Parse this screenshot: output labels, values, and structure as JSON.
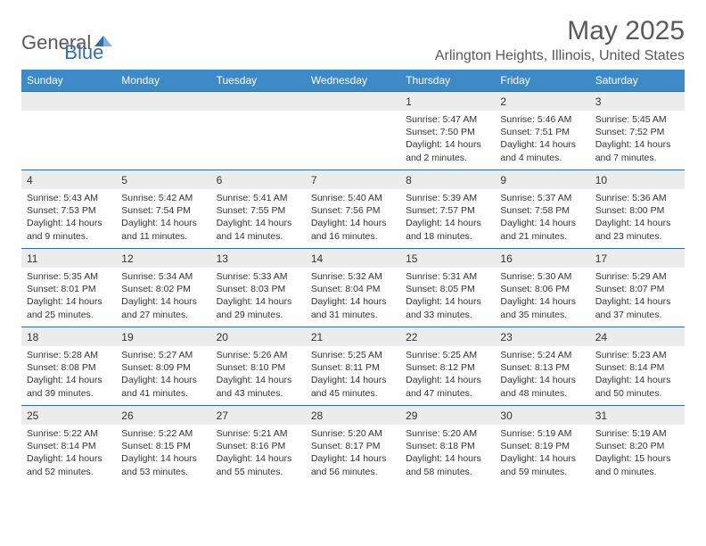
{
  "logo": {
    "text_a": "General",
    "text_b": "Blue"
  },
  "title": "May 2025",
  "location": "Arlington Heights, Illinois, United States",
  "colors": {
    "header_bg": "#3e8ac9",
    "header_text": "#ffffff",
    "border": "#2f6fb0",
    "daynum_bg": "#ececec",
    "body_text": "#333333",
    "title_text": "#5a5a5a",
    "logo_blue": "#2f6fb0"
  },
  "weekdays": [
    "Sunday",
    "Monday",
    "Tuesday",
    "Wednesday",
    "Thursday",
    "Friday",
    "Saturday"
  ],
  "weeks": [
    [
      {
        "n": "",
        "sunrise": "",
        "sunset": "",
        "daylight": ""
      },
      {
        "n": "",
        "sunrise": "",
        "sunset": "",
        "daylight": ""
      },
      {
        "n": "",
        "sunrise": "",
        "sunset": "",
        "daylight": ""
      },
      {
        "n": "",
        "sunrise": "",
        "sunset": "",
        "daylight": ""
      },
      {
        "n": "1",
        "sunrise": "Sunrise: 5:47 AM",
        "sunset": "Sunset: 7:50 PM",
        "daylight": "Daylight: 14 hours and 2 minutes."
      },
      {
        "n": "2",
        "sunrise": "Sunrise: 5:46 AM",
        "sunset": "Sunset: 7:51 PM",
        "daylight": "Daylight: 14 hours and 4 minutes."
      },
      {
        "n": "3",
        "sunrise": "Sunrise: 5:45 AM",
        "sunset": "Sunset: 7:52 PM",
        "daylight": "Daylight: 14 hours and 7 minutes."
      }
    ],
    [
      {
        "n": "4",
        "sunrise": "Sunrise: 5:43 AM",
        "sunset": "Sunset: 7:53 PM",
        "daylight": "Daylight: 14 hours and 9 minutes."
      },
      {
        "n": "5",
        "sunrise": "Sunrise: 5:42 AM",
        "sunset": "Sunset: 7:54 PM",
        "daylight": "Daylight: 14 hours and 11 minutes."
      },
      {
        "n": "6",
        "sunrise": "Sunrise: 5:41 AM",
        "sunset": "Sunset: 7:55 PM",
        "daylight": "Daylight: 14 hours and 14 minutes."
      },
      {
        "n": "7",
        "sunrise": "Sunrise: 5:40 AM",
        "sunset": "Sunset: 7:56 PM",
        "daylight": "Daylight: 14 hours and 16 minutes."
      },
      {
        "n": "8",
        "sunrise": "Sunrise: 5:39 AM",
        "sunset": "Sunset: 7:57 PM",
        "daylight": "Daylight: 14 hours and 18 minutes."
      },
      {
        "n": "9",
        "sunrise": "Sunrise: 5:37 AM",
        "sunset": "Sunset: 7:58 PM",
        "daylight": "Daylight: 14 hours and 21 minutes."
      },
      {
        "n": "10",
        "sunrise": "Sunrise: 5:36 AM",
        "sunset": "Sunset: 8:00 PM",
        "daylight": "Daylight: 14 hours and 23 minutes."
      }
    ],
    [
      {
        "n": "11",
        "sunrise": "Sunrise: 5:35 AM",
        "sunset": "Sunset: 8:01 PM",
        "daylight": "Daylight: 14 hours and 25 minutes."
      },
      {
        "n": "12",
        "sunrise": "Sunrise: 5:34 AM",
        "sunset": "Sunset: 8:02 PM",
        "daylight": "Daylight: 14 hours and 27 minutes."
      },
      {
        "n": "13",
        "sunrise": "Sunrise: 5:33 AM",
        "sunset": "Sunset: 8:03 PM",
        "daylight": "Daylight: 14 hours and 29 minutes."
      },
      {
        "n": "14",
        "sunrise": "Sunrise: 5:32 AM",
        "sunset": "Sunset: 8:04 PM",
        "daylight": "Daylight: 14 hours and 31 minutes."
      },
      {
        "n": "15",
        "sunrise": "Sunrise: 5:31 AM",
        "sunset": "Sunset: 8:05 PM",
        "daylight": "Daylight: 14 hours and 33 minutes."
      },
      {
        "n": "16",
        "sunrise": "Sunrise: 5:30 AM",
        "sunset": "Sunset: 8:06 PM",
        "daylight": "Daylight: 14 hours and 35 minutes."
      },
      {
        "n": "17",
        "sunrise": "Sunrise: 5:29 AM",
        "sunset": "Sunset: 8:07 PM",
        "daylight": "Daylight: 14 hours and 37 minutes."
      }
    ],
    [
      {
        "n": "18",
        "sunrise": "Sunrise: 5:28 AM",
        "sunset": "Sunset: 8:08 PM",
        "daylight": "Daylight: 14 hours and 39 minutes."
      },
      {
        "n": "19",
        "sunrise": "Sunrise: 5:27 AM",
        "sunset": "Sunset: 8:09 PM",
        "daylight": "Daylight: 14 hours and 41 minutes."
      },
      {
        "n": "20",
        "sunrise": "Sunrise: 5:26 AM",
        "sunset": "Sunset: 8:10 PM",
        "daylight": "Daylight: 14 hours and 43 minutes."
      },
      {
        "n": "21",
        "sunrise": "Sunrise: 5:25 AM",
        "sunset": "Sunset: 8:11 PM",
        "daylight": "Daylight: 14 hours and 45 minutes."
      },
      {
        "n": "22",
        "sunrise": "Sunrise: 5:25 AM",
        "sunset": "Sunset: 8:12 PM",
        "daylight": "Daylight: 14 hours and 47 minutes."
      },
      {
        "n": "23",
        "sunrise": "Sunrise: 5:24 AM",
        "sunset": "Sunset: 8:13 PM",
        "daylight": "Daylight: 14 hours and 48 minutes."
      },
      {
        "n": "24",
        "sunrise": "Sunrise: 5:23 AM",
        "sunset": "Sunset: 8:14 PM",
        "daylight": "Daylight: 14 hours and 50 minutes."
      }
    ],
    [
      {
        "n": "25",
        "sunrise": "Sunrise: 5:22 AM",
        "sunset": "Sunset: 8:14 PM",
        "daylight": "Daylight: 14 hours and 52 minutes."
      },
      {
        "n": "26",
        "sunrise": "Sunrise: 5:22 AM",
        "sunset": "Sunset: 8:15 PM",
        "daylight": "Daylight: 14 hours and 53 minutes."
      },
      {
        "n": "27",
        "sunrise": "Sunrise: 5:21 AM",
        "sunset": "Sunset: 8:16 PM",
        "daylight": "Daylight: 14 hours and 55 minutes."
      },
      {
        "n": "28",
        "sunrise": "Sunrise: 5:20 AM",
        "sunset": "Sunset: 8:17 PM",
        "daylight": "Daylight: 14 hours and 56 minutes."
      },
      {
        "n": "29",
        "sunrise": "Sunrise: 5:20 AM",
        "sunset": "Sunset: 8:18 PM",
        "daylight": "Daylight: 14 hours and 58 minutes."
      },
      {
        "n": "30",
        "sunrise": "Sunrise: 5:19 AM",
        "sunset": "Sunset: 8:19 PM",
        "daylight": "Daylight: 14 hours and 59 minutes."
      },
      {
        "n": "31",
        "sunrise": "Sunrise: 5:19 AM",
        "sunset": "Sunset: 8:20 PM",
        "daylight": "Daylight: 15 hours and 0 minutes."
      }
    ]
  ]
}
